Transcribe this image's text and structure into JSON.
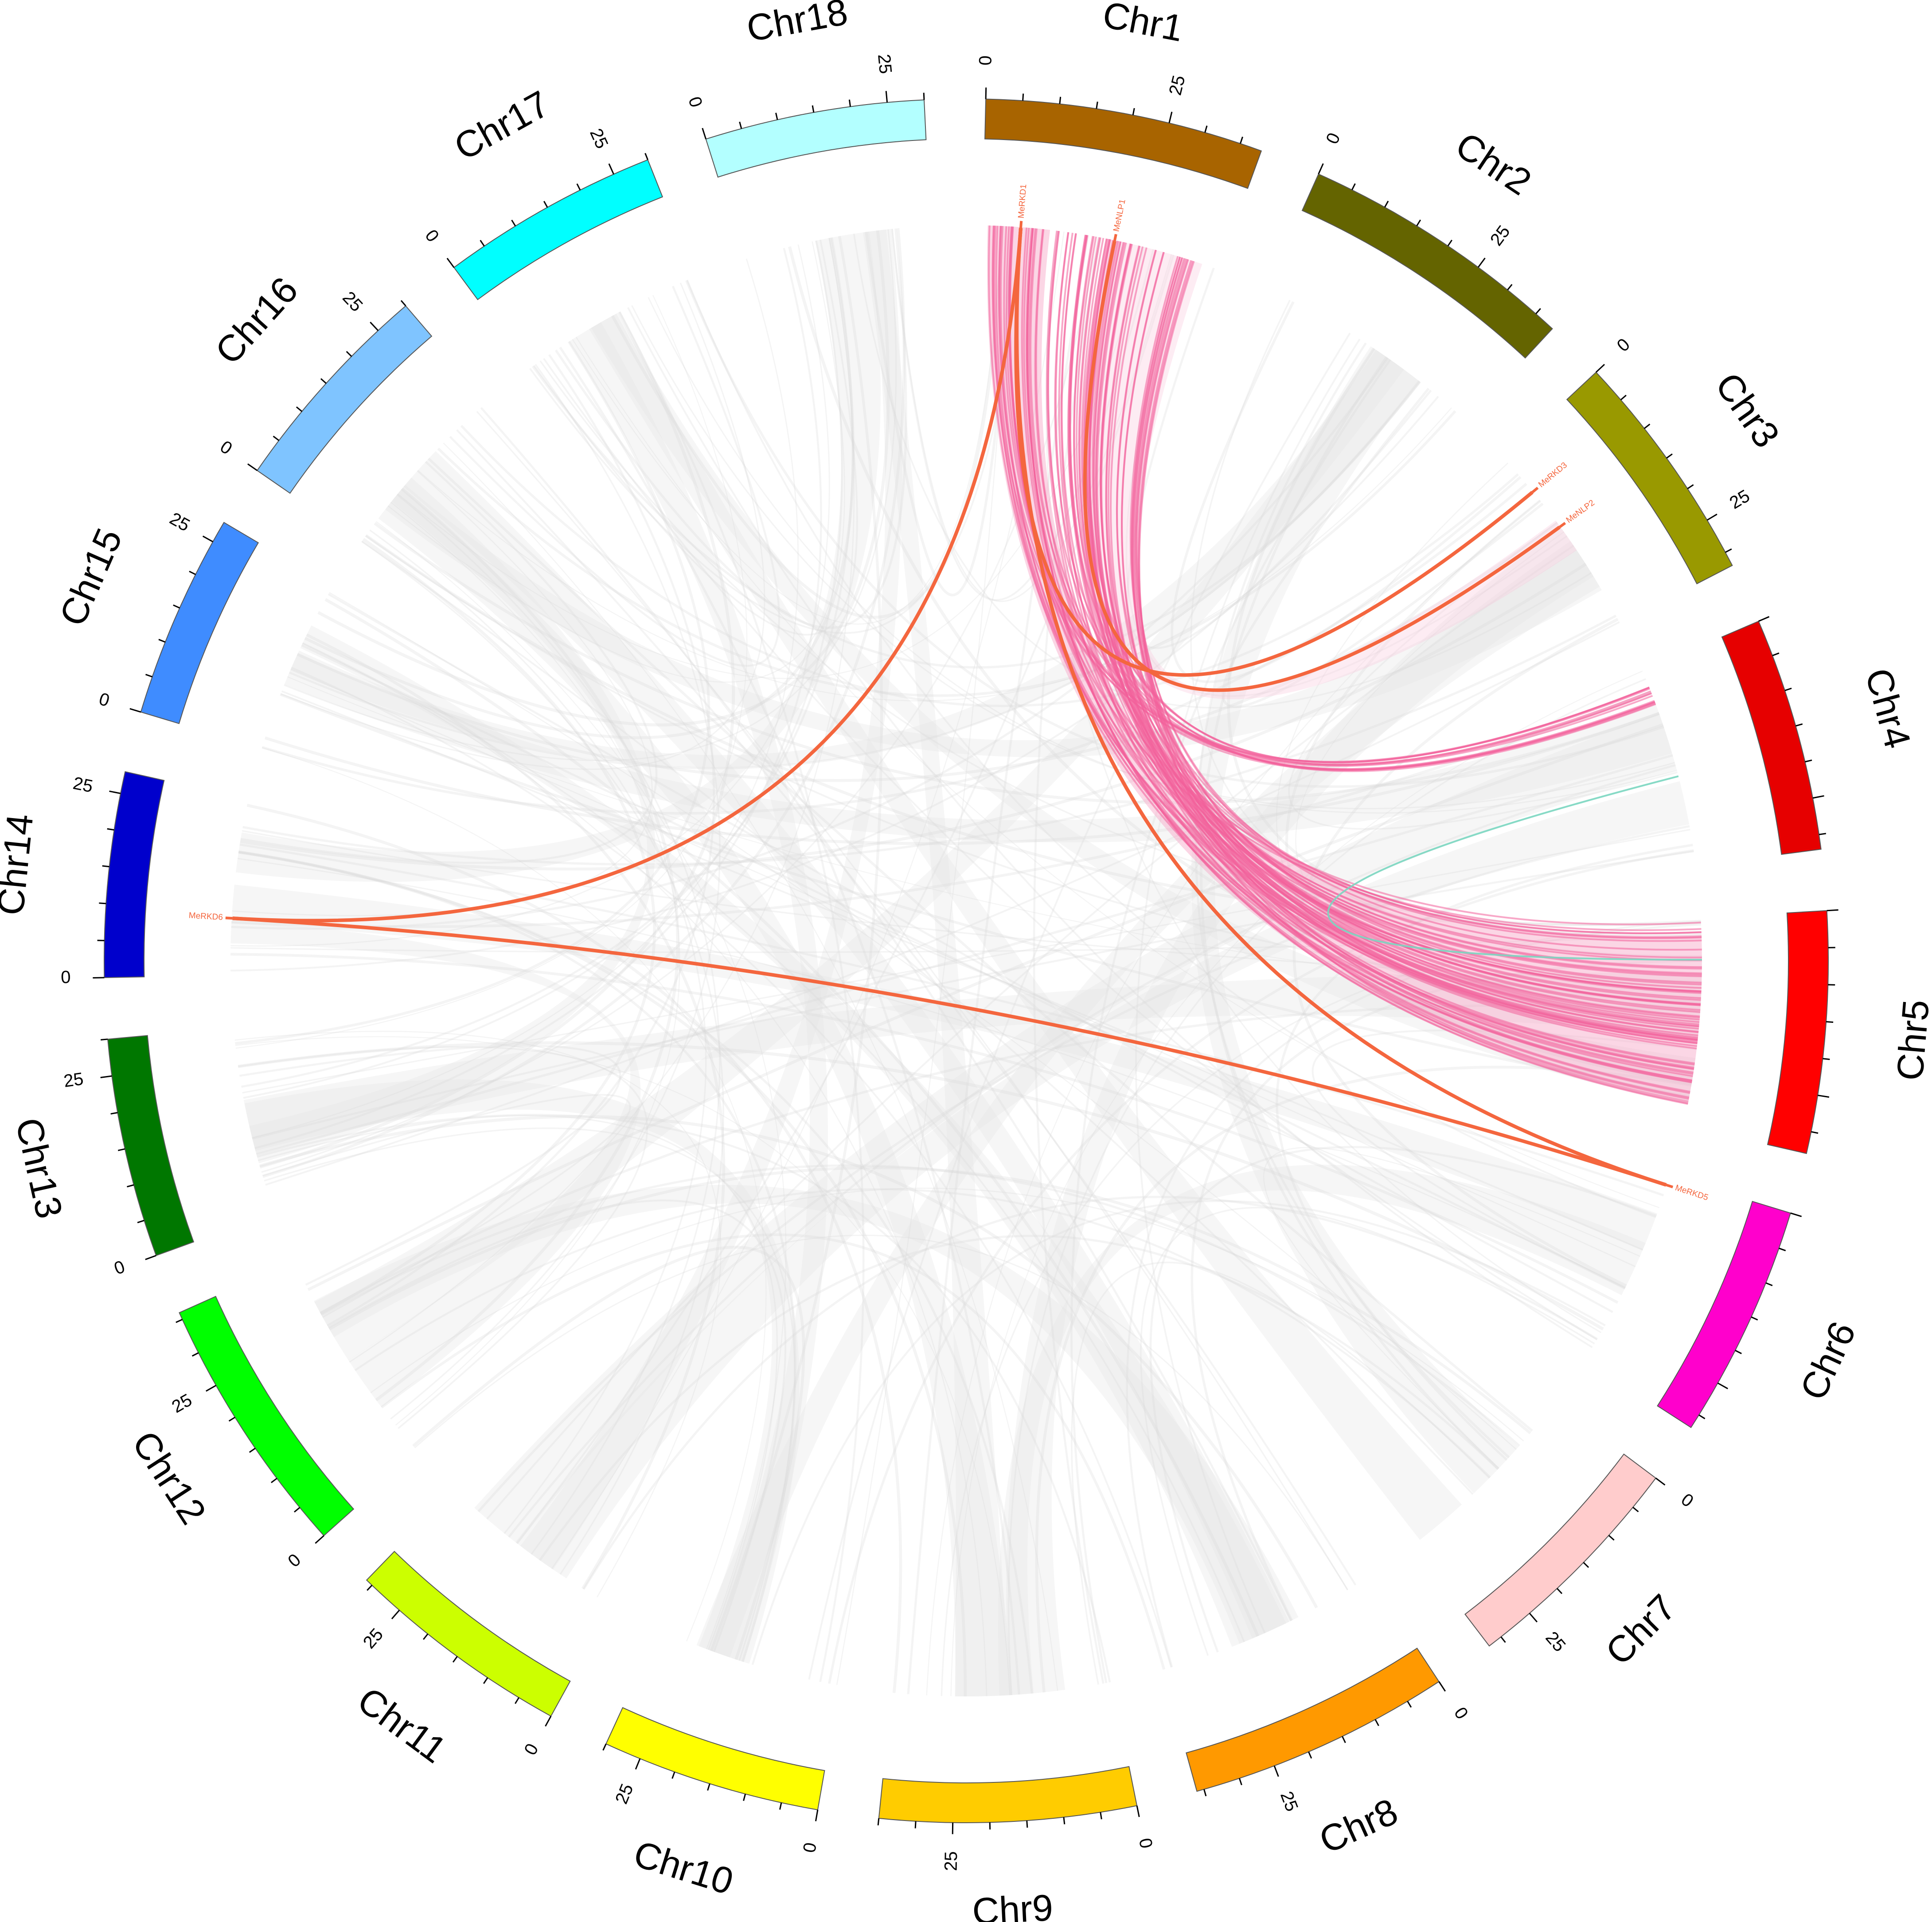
{
  "chart_data": {
    "type": "circos",
    "title": "",
    "tick_step": 25,
    "chromosomes": [
      {
        "name": "Chr1",
        "length": 38,
        "color": "#a86400"
      },
      {
        "name": "Chr2",
        "length": 38,
        "color": "#646400"
      },
      {
        "name": "Chr3",
        "length": 32,
        "color": "#999900"
      },
      {
        "name": "Chr4",
        "length": 32,
        "color": "#e60000"
      },
      {
        "name": "Chr5",
        "length": 33,
        "color": "#ff0000"
      },
      {
        "name": "Chr6",
        "length": 32,
        "color": "#ff00cc"
      },
      {
        "name": "Chr7",
        "length": 32,
        "color": "#ffcccc"
      },
      {
        "name": "Chr8",
        "length": 36,
        "color": "#ff9900"
      },
      {
        "name": "Chr9",
        "length": 35,
        "color": "#ffcc00"
      },
      {
        "name": "Chr10",
        "length": 30,
        "color": "#ffff00"
      },
      {
        "name": "Chr11",
        "length": 31,
        "color": "#ccff00"
      },
      {
        "name": "Chr12",
        "length": 36,
        "color": "#00ff00"
      },
      {
        "name": "Chr13",
        "length": 30,
        "color": "#007700"
      },
      {
        "name": "Chr14",
        "length": 28,
        "color": "#0000cc"
      },
      {
        "name": "Chr15",
        "length": 28,
        "color": "#3f8cff"
      },
      {
        "name": "Chr16",
        "length": 30,
        "color": "#7fc4ff"
      },
      {
        "name": "Chr17",
        "length": 30,
        "color": "#00ffff"
      },
      {
        "name": "Chr18",
        "length": 30,
        "color": "#b3ffff"
      }
    ],
    "genes": [
      {
        "name": "MeRKD1",
        "chr": "Chr1",
        "pos": 6
      },
      {
        "name": "MeNLP1",
        "chr": "Chr1",
        "pos": 21
      },
      {
        "name": "MeRKD3",
        "chr": "Chr3",
        "pos": 7
      },
      {
        "name": "MeNLP2",
        "chr": "Chr3",
        "pos": 14
      },
      {
        "name": "MeRKD6",
        "chr": "Chr14",
        "pos": 9
      },
      {
        "name": "MeRKD5",
        "chr": "Chr6",
        "pos": 1.5
      }
    ],
    "gene_links": [
      {
        "from": "MeRKD1",
        "to": "MeRKD6"
      },
      {
        "from": "MeRKD1",
        "to": "MeRKD5"
      },
      {
        "from": "MeRKD1",
        "to": "MeRKD3"
      },
      {
        "from": "MeNLP1",
        "to": "MeNLP2"
      },
      {
        "from": "MeRKD6",
        "to": "MeRKD5"
      }
    ]
  }
}
